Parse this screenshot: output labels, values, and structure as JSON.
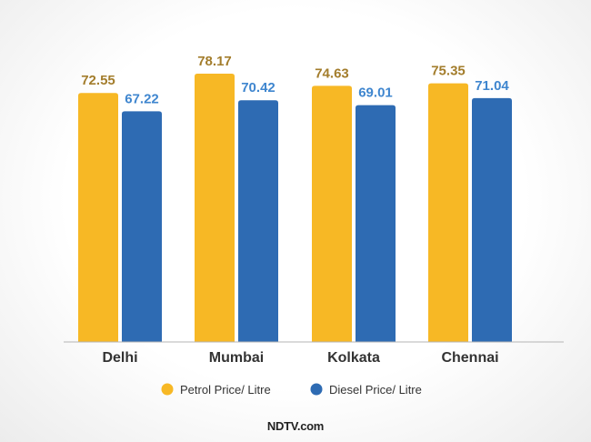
{
  "chart_data": {
    "type": "bar",
    "title": "",
    "xlabel": "",
    "ylabel": "",
    "ylim": [
      0,
      80
    ],
    "grid": false,
    "legend_position": "bottom",
    "categories": [
      "Delhi",
      "Mumbai",
      "Kolkata",
      "Chennai"
    ],
    "series": [
      {
        "name": "Petrol Price/ Litre",
        "values": [
          72.55,
          78.17,
          74.63,
          75.35
        ],
        "labels": [
          "72.55",
          "78.17",
          "74.63",
          "75.35"
        ]
      },
      {
        "name": "Diesel Price/ Litre",
        "values": [
          67.22,
          70.42,
          69.01,
          71.04
        ],
        "labels": [
          "67.22",
          "70.42",
          "69.01",
          "71.04"
        ]
      }
    ]
  },
  "colors": {
    "petrol_bar": "#f7b825",
    "diesel_bar": "#2e6bb3",
    "petrol_label": "#a37d2c",
    "diesel_label": "#3f86cf",
    "axis": "#b5b5b5"
  },
  "watermark": {
    "text": "NDTV.com"
  }
}
